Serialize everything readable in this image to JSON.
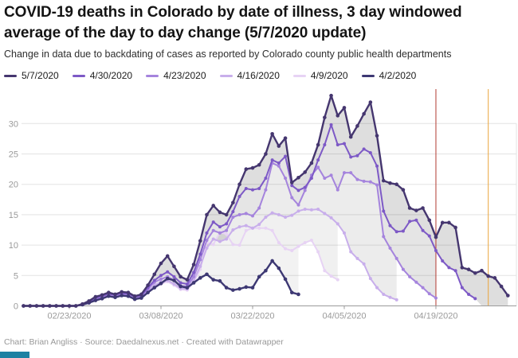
{
  "header": {
    "title_lines": [
      "COVID-19 deaths in Colorado by date of illness, 3 day windowed",
      "average of the day to day change (5/7/2020 update)"
    ],
    "subtitle": "Change in data due to backdating of cases as reported by Colorado county public health departments"
  },
  "footer": {
    "text": "Chart: Brian Angliss · Source: Daedalnexus.net · Created with Datawrapper"
  },
  "chart_data": {
    "type": "line",
    "ylim": [
      0,
      35
    ],
    "yticks": [
      0,
      5,
      10,
      15,
      20,
      25,
      30
    ],
    "xticks": [
      "02/23/2020",
      "03/08/2020",
      "03/22/2020",
      "04/05/2020",
      "04/19/2020"
    ],
    "grid": true,
    "legend_position": "top",
    "x": [
      "02/16",
      "02/17",
      "02/18",
      "02/19",
      "02/20",
      "02/21",
      "02/22",
      "02/23",
      "02/24",
      "02/25",
      "02/26",
      "02/27",
      "02/28",
      "02/29",
      "03/01",
      "03/02",
      "03/03",
      "03/04",
      "03/05",
      "03/06",
      "03/07",
      "03/08",
      "03/09",
      "03/10",
      "03/11",
      "03/12",
      "03/13",
      "03/14",
      "03/15",
      "03/16",
      "03/17",
      "03/18",
      "03/19",
      "03/20",
      "03/21",
      "03/22",
      "03/23",
      "03/24",
      "03/25",
      "03/26",
      "03/27",
      "03/28",
      "03/29",
      "03/30",
      "03/31",
      "04/01",
      "04/02",
      "04/03",
      "04/04",
      "04/05",
      "04/06",
      "04/07",
      "04/08",
      "04/09",
      "04/10",
      "04/11",
      "04/12",
      "04/13",
      "04/14",
      "04/15",
      "04/16",
      "04/17",
      "04/18",
      "04/19",
      "04/20",
      "04/21",
      "04/22",
      "04/23",
      "04/24",
      "04/25",
      "04/26",
      "04/27",
      "04/28",
      "04/29",
      "04/30"
    ],
    "series": [
      {
        "name": "5/7/2020",
        "color": "#45366f",
        "values": [
          0,
          0,
          0,
          0,
          0,
          0,
          0,
          0,
          0,
          0.3,
          0.8,
          1.5,
          1.8,
          2.2,
          1.9,
          2.3,
          2.2,
          1.6,
          1.9,
          3.4,
          5.2,
          7,
          8.2,
          6.5,
          4.8,
          4.3,
          6.8,
          10.7,
          15,
          16.5,
          15.4,
          15,
          17,
          20,
          22.5,
          22.7,
          23.2,
          25,
          28.3,
          26.3,
          27.6,
          20.3,
          21.1,
          22,
          23.5,
          26.5,
          31,
          34.6,
          31.3,
          32.6,
          27.8,
          29.6,
          31.6,
          33.5,
          28,
          20.6,
          20.2,
          20,
          19.1,
          16.1,
          15.7,
          16.1,
          14.1,
          11.3,
          13.7,
          13.7,
          12.9,
          6.3,
          6,
          5.4,
          5.8,
          4.9,
          4.6,
          3.2,
          1.7
        ]
      },
      {
        "name": "4/30/2020",
        "color": "#7d59c6",
        "values": [
          0,
          0,
          0,
          0,
          0,
          0,
          0,
          0,
          0,
          0.2,
          0.7,
          1.3,
          1.6,
          2,
          1.8,
          2.1,
          2,
          1.5,
          1.7,
          3,
          4.2,
          5,
          5.6,
          4.8,
          3.8,
          3.6,
          5.5,
          8.5,
          12,
          13.8,
          13,
          13.5,
          15.5,
          18,
          19.3,
          19.1,
          19.3,
          21,
          24,
          23.5,
          24.6,
          19.8,
          19,
          19.5,
          21,
          24,
          26.5,
          29.8,
          26.5,
          26.7,
          24.5,
          24.7,
          25.8,
          25.2,
          23,
          15.6,
          13.2,
          12.2,
          12.3,
          13.9,
          14.1,
          12.4,
          11.5,
          9.1,
          7.4,
          6.3,
          5.8,
          3,
          1.9,
          1.2,
          null,
          null,
          null,
          null,
          null
        ]
      },
      {
        "name": "4/23/2020",
        "color": "#a584dd",
        "values": [
          0,
          0,
          0,
          0,
          0,
          0,
          0,
          0,
          0,
          0.2,
          0.6,
          1.2,
          1.5,
          1.9,
          1.7,
          2,
          1.9,
          1.4,
          1.6,
          2.8,
          3.9,
          4.4,
          4.8,
          4.2,
          3.3,
          3.2,
          4.8,
          7.6,
          10.8,
          12.4,
          12,
          12.4,
          14.6,
          15,
          15.2,
          14.8,
          16.1,
          19.1,
          23.5,
          23,
          21,
          17.8,
          16.6,
          19,
          21.5,
          22.8,
          21,
          21.5,
          19.1,
          21.9,
          21.9,
          20.8,
          20.5,
          20.4,
          19.9,
          11.4,
          9.5,
          7.8,
          6,
          4.8,
          3.9,
          3,
          2,
          1.3,
          null,
          null,
          null,
          null,
          null,
          null,
          null,
          null,
          null,
          null,
          null
        ]
      },
      {
        "name": "4/16/2020",
        "color": "#c8aeeb",
        "values": [
          0,
          0,
          0,
          0,
          0,
          0,
          0,
          0,
          0,
          0.2,
          0.5,
          1,
          1.4,
          1.8,
          1.6,
          1.9,
          1.8,
          1.3,
          1.5,
          2.5,
          3.4,
          3.9,
          4.2,
          3.6,
          2.9,
          2.8,
          4.2,
          6.5,
          9.5,
          11,
          10.6,
          11,
          12.5,
          13,
          13.2,
          12.8,
          13.4,
          14.6,
          15.3,
          15,
          14.6,
          14.9,
          15.6,
          15.9,
          15.8,
          15.9,
          15.2,
          14.5,
          13.5,
          12,
          8.9,
          7.8,
          6.9,
          4.5,
          3,
          1.9,
          1.4,
          1,
          null,
          null,
          null,
          null,
          null,
          null,
          null,
          null,
          null,
          null,
          null,
          null,
          null,
          null,
          null,
          null,
          null
        ]
      },
      {
        "name": "4/9/2020",
        "color": "#e7d3f4",
        "values": [
          0,
          0,
          0,
          0,
          0,
          0,
          0,
          0,
          0,
          0.2,
          0.5,
          0.9,
          1.3,
          1.7,
          1.5,
          1.8,
          1.7,
          1.2,
          1.4,
          2.3,
          3.1,
          3.6,
          4,
          3.4,
          2.7,
          2.6,
          3.9,
          6,
          10.4,
          10.1,
          12.1,
          11.8,
          10.1,
          10,
          12.4,
          12.8,
          12.8,
          12.8,
          12.4,
          10.4,
          9.4,
          9.1,
          9.8,
          10.4,
          10.8,
          8.9,
          5.8,
          4.9,
          4.3,
          null,
          null,
          null,
          null,
          null,
          null,
          null,
          null,
          null,
          null,
          null,
          null,
          null,
          null,
          null,
          null,
          null,
          null,
          null,
          null,
          null,
          null,
          null,
          null,
          null,
          null
        ]
      },
      {
        "name": "4/2/2020",
        "color": "#3d3873",
        "values": [
          0,
          0,
          0,
          0,
          0,
          0,
          0,
          0,
          0,
          0.2,
          0.5,
          0.9,
          1.2,
          1.6,
          1.4,
          1.7,
          1.6,
          1.1,
          1.3,
          2.2,
          3,
          3.7,
          4.5,
          4.2,
          3.2,
          3,
          3.8,
          4.6,
          5.2,
          4.3,
          4.1,
          3,
          2.6,
          2.8,
          3.1,
          3,
          4.8,
          5.8,
          7.4,
          6.2,
          4.4,
          2.2,
          1.9,
          null,
          null,
          null,
          null,
          null,
          null,
          null,
          null,
          null,
          null,
          null,
          null,
          null,
          null,
          null,
          null,
          null,
          null,
          null,
          null,
          null,
          null,
          null,
          null,
          null,
          null,
          null,
          null,
          null,
          null,
          null,
          null
        ]
      }
    ],
    "annotations": {
      "vlines": [
        {
          "x": "04/19",
          "color": "#b23b31"
        },
        {
          "x": "04/27",
          "color": "#eaa43c"
        }
      ]
    }
  }
}
